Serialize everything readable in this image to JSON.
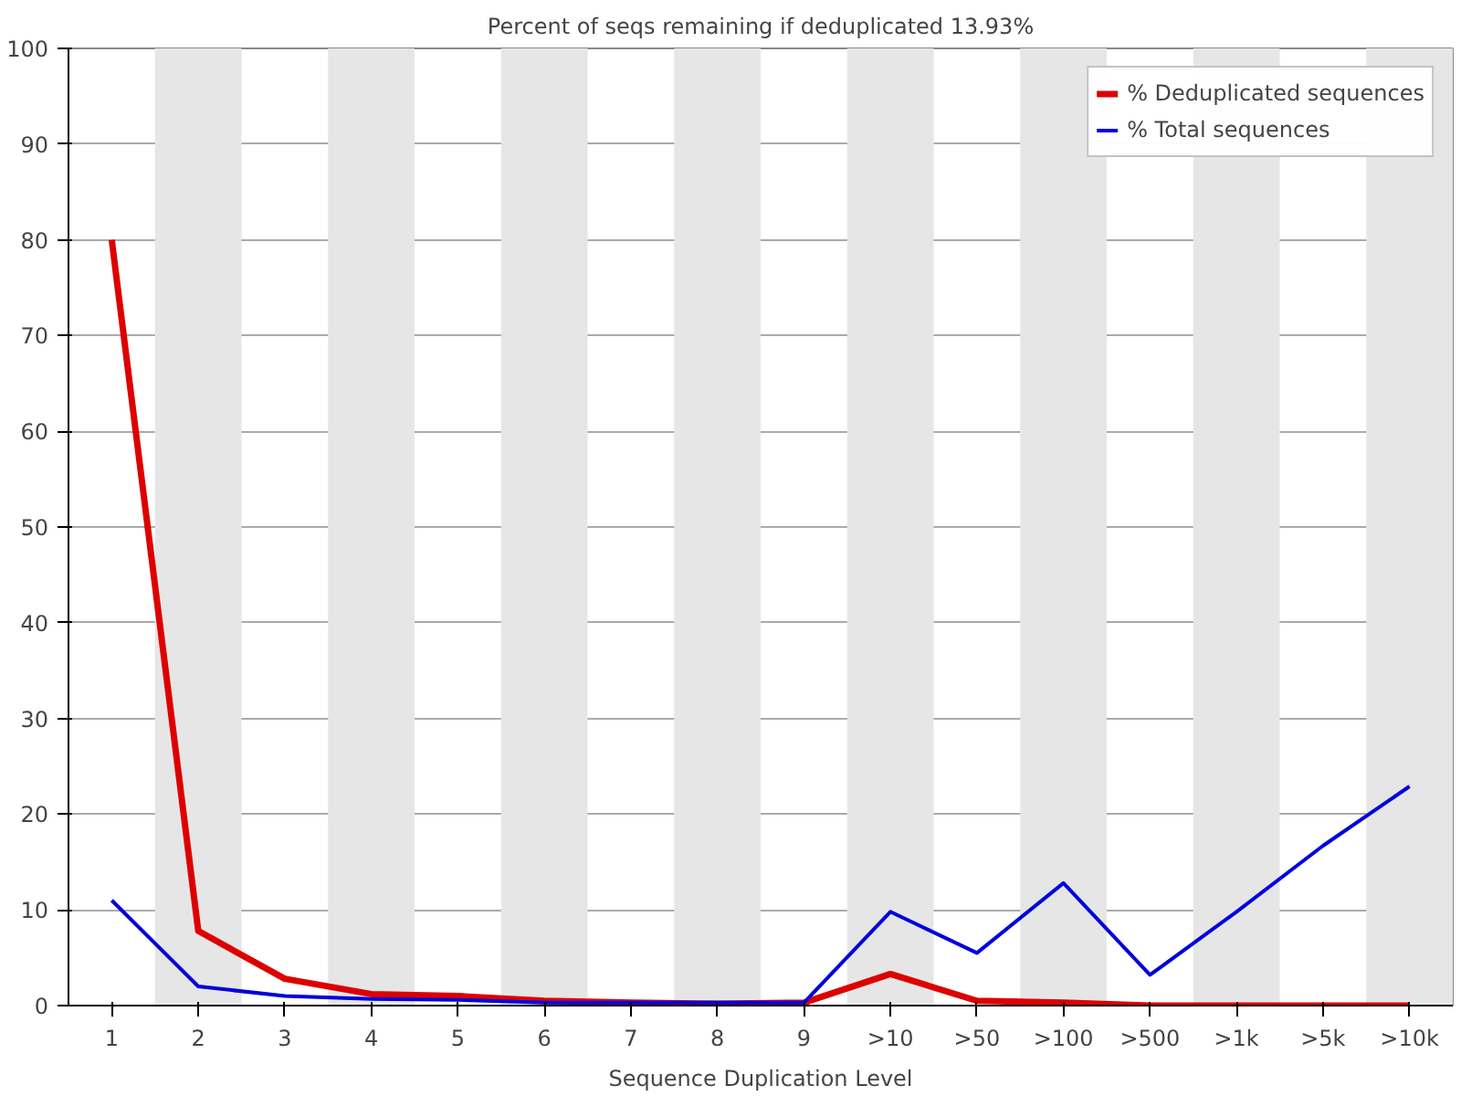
{
  "chart_data": {
    "type": "line",
    "title": "Percent of seqs remaining if deduplicated 13.93%",
    "xlabel": "Sequence Duplication Level",
    "categories": [
      "1",
      "2",
      "3",
      "4",
      "5",
      "6",
      "7",
      "8",
      "9",
      ">10",
      ">50",
      ">100",
      ">500",
      ">1k",
      ">5k",
      ">10k"
    ],
    "series": [
      {
        "name": "% Deduplicated sequences",
        "color": "#dd0000",
        "values": [
          80,
          7.8,
          2.8,
          1.2,
          1.0,
          0.5,
          0.3,
          0.2,
          0.3,
          3.3,
          0.5,
          0.3,
          0,
          0,
          0,
          0
        ]
      },
      {
        "name": "% Total sequences",
        "color": "#0000dd",
        "values": [
          11,
          2,
          1.0,
          0.7,
          0.6,
          0.3,
          0.3,
          0.3,
          0.3,
          9.8,
          5.5,
          12.8,
          3.2,
          9.8,
          16.7,
          22.9
        ]
      }
    ],
    "ylim": [
      0,
      100
    ],
    "yticks": [
      0,
      10,
      20,
      30,
      40,
      50,
      60,
      70,
      80,
      90,
      100
    ],
    "grid": "y",
    "legend": "top right",
    "marker": "none",
    "line_style": "solid",
    "bands": [
      {
        "axis": "x",
        "from": "2",
        "to": "2",
        "color": "#e6e6e6"
      },
      {
        "axis": "x",
        "from": "4",
        "to": "4",
        "color": "#e6e6e6"
      },
      {
        "axis": "x",
        "from": "6",
        "to": "6",
        "color": "#e6e6e6"
      },
      {
        "axis": "x",
        "from": "8",
        "to": "8",
        "color": "#e6e6e6"
      },
      {
        "axis": "x",
        "from": ">10",
        "to": ">10",
        "color": "#e6e6e6"
      },
      {
        "axis": "x",
        "from": ">100",
        "to": ">100",
        "color": "#e6e6e6"
      },
      {
        "axis": "x",
        "from": ">1k",
        "to": ">1k",
        "color": "#e6e6e6"
      },
      {
        "axis": "x",
        "from": ">10k",
        "to": ">10k",
        "color": "#e6e6e6"
      }
    ]
  }
}
